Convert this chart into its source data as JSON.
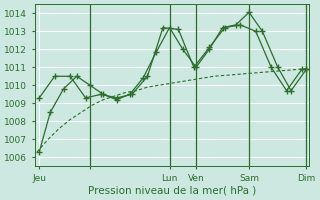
{
  "bg_color": "#cce8e0",
  "grid_color": "#b8d8d0",
  "line_color": "#2d6e2d",
  "tick_label_color": "#2d6e2d",
  "xlabel": "Pression niveau de la mer( hPa )",
  "xlabel_color": "#2d6e2d",
  "ylim": [
    1005.5,
    1014.5
  ],
  "yticks": [
    1006,
    1007,
    1008,
    1009,
    1010,
    1011,
    1012,
    1013,
    1014
  ],
  "xlim": [
    -2,
    246
  ],
  "vline_x": [
    48,
    120,
    144,
    192,
    244
  ],
  "day_tick_x": [
    2,
    48,
    120,
    144,
    192,
    244
  ],
  "day_labels": [
    "Jeu",
    "",
    "Lun",
    "Ven",
    "Sam",
    "Dim"
  ],
  "smooth_x": [
    0,
    10,
    20,
    30,
    40,
    50,
    60,
    70,
    80,
    90,
    100,
    110,
    120,
    130,
    140,
    150,
    160,
    170,
    180,
    190,
    200,
    210,
    220,
    230,
    240,
    244
  ],
  "smooth_y": [
    1006.3,
    1007.0,
    1007.6,
    1008.1,
    1008.5,
    1008.9,
    1009.2,
    1009.4,
    1009.6,
    1009.7,
    1009.9,
    1010.0,
    1010.1,
    1010.2,
    1010.3,
    1010.4,
    1010.5,
    1010.55,
    1010.6,
    1010.65,
    1010.7,
    1010.75,
    1010.8,
    1010.85,
    1010.9,
    1010.9
  ],
  "line2_x": [
    2,
    16,
    30,
    44,
    58,
    72,
    86,
    100,
    114,
    128,
    142,
    156,
    170,
    184,
    198,
    212,
    226,
    240,
    244
  ],
  "line2_y": [
    1009.3,
    1010.5,
    1010.5,
    1009.3,
    1009.5,
    1009.3,
    1009.5,
    1010.5,
    1013.2,
    1013.1,
    1011.0,
    1012.1,
    1013.2,
    1013.35,
    1013.0,
    1011.0,
    1009.7,
    1010.9,
    1010.9
  ],
  "line3_x": [
    2,
    12,
    24,
    36,
    48,
    60,
    72,
    84,
    96,
    108,
    120,
    132,
    144,
    156,
    168,
    180,
    192,
    204,
    218,
    230,
    244
  ],
  "line3_y": [
    1006.3,
    1008.5,
    1009.8,
    1010.5,
    1010.0,
    1009.5,
    1009.2,
    1009.5,
    1010.4,
    1011.85,
    1013.2,
    1012.0,
    1011.0,
    1012.0,
    1013.2,
    1013.35,
    1014.05,
    1013.0,
    1011.0,
    1009.7,
    1010.9
  ]
}
